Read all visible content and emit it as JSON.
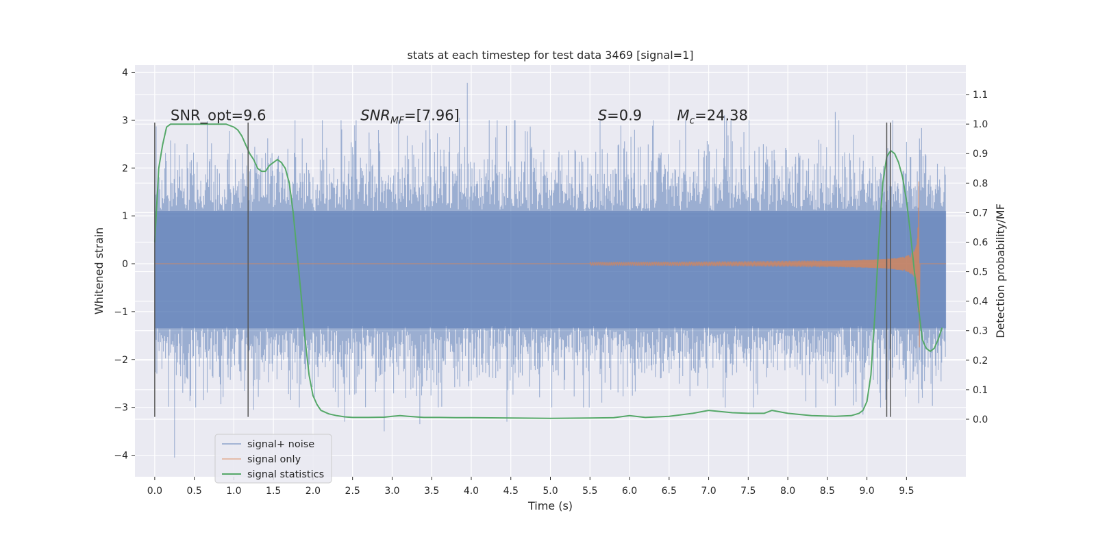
{
  "chart_data": {
    "type": "line",
    "title": "stats at each timestep for test data 3469 [signal=1]",
    "xlabel": "Time (s)",
    "ylabel_left": "Whitened strain",
    "ylabel_right": "Detection probability/MF",
    "xlim": [
      -0.25,
      10.25
    ],
    "ylim_left": [
      -4.45,
      4.15
    ],
    "ylim_right": [
      -0.195,
      1.2
    ],
    "x_ticks": [
      "0.0",
      "0.5",
      "1.0",
      "1.5",
      "2.0",
      "2.5",
      "3.0",
      "3.5",
      "4.0",
      "4.5",
      "5.0",
      "5.5",
      "6.0",
      "6.5",
      "7.0",
      "7.5",
      "8.0",
      "8.5",
      "9.0",
      "9.5"
    ],
    "y_ticks_left": [
      "−4",
      "−3",
      "−2",
      "−1",
      "0",
      "1",
      "2",
      "3",
      "4"
    ],
    "y_ticks_right": [
      "0.0",
      "0.1",
      "0.2",
      "0.3",
      "0.4",
      "0.5",
      "0.6",
      "0.7",
      "0.8",
      "0.9",
      "1.0",
      "1.1"
    ],
    "grid": true,
    "legend_position": "lower-left",
    "colors": {
      "noise": "#4c72b0",
      "signal": "#dd8452",
      "stats": "#55a868",
      "vlines": "#555555",
      "background": "#eaeaf2"
    },
    "series": [
      {
        "name": "signal+ noise",
        "kind": "strain_noise",
        "duration_s": 10.0,
        "band": [
          -1.35,
          1.1
        ],
        "envelope_upper_typical": 2.0,
        "envelope_lower_typical": -2.0,
        "spikes": [
          {
            "x": 0.25,
            "y": -4.05
          },
          {
            "x": 3.95,
            "y": 3.78
          },
          {
            "x": 2.9,
            "y": -3.5
          },
          {
            "x": 3.35,
            "y": -3.35
          },
          {
            "x": 4.45,
            "y": -3.3
          },
          {
            "x": 2.4,
            "y": -3.3
          },
          {
            "x": 8.95,
            "y": -3.15
          },
          {
            "x": 9.7,
            "y": -2.8
          },
          {
            "x": 8.6,
            "y": 3.17
          },
          {
            "x": 3.85,
            "y": 3.05
          },
          {
            "x": 1.25,
            "y": -3.05
          },
          {
            "x": 7.2,
            "y": 3.1
          },
          {
            "x": 5.65,
            "y": -2.9
          },
          {
            "x": 6.3,
            "y": 3.0
          }
        ]
      },
      {
        "name": "signal only",
        "kind": "chirp",
        "chirp_start_s": 5.5,
        "merger_s": 9.65,
        "peak_amplitude": 1.72,
        "end_s": 10.0
      },
      {
        "name": "signal statistics",
        "axis": "right",
        "x": [
          0.0,
          0.05,
          0.1,
          0.15,
          0.2,
          0.3,
          0.5,
          0.7,
          0.9,
          1.0,
          1.05,
          1.1,
          1.15,
          1.2,
          1.25,
          1.3,
          1.35,
          1.4,
          1.45,
          1.5,
          1.55,
          1.6,
          1.65,
          1.7,
          1.75,
          1.8,
          1.85,
          1.9,
          1.95,
          2.0,
          2.05,
          2.1,
          2.2,
          2.3,
          2.4,
          2.5,
          2.7,
          2.9,
          3.0,
          3.1,
          3.2,
          3.4,
          3.6,
          3.8,
          4.0,
          4.5,
          5.0,
          5.5,
          5.8,
          6.0,
          6.2,
          6.5,
          6.8,
          7.0,
          7.3,
          7.5,
          7.7,
          7.8,
          8.0,
          8.3,
          8.6,
          8.8,
          8.9,
          8.95,
          9.0,
          9.05,
          9.1,
          9.15,
          9.2,
          9.25,
          9.3,
          9.35,
          9.4,
          9.45,
          9.5,
          9.55,
          9.6,
          9.65,
          9.7,
          9.75,
          9.8,
          9.85,
          9.9,
          9.95
        ],
        "values": [
          0.6,
          0.85,
          0.93,
          0.99,
          1.0,
          1.0,
          1.0,
          1.0,
          1.0,
          0.99,
          0.98,
          0.96,
          0.93,
          0.9,
          0.88,
          0.85,
          0.84,
          0.84,
          0.86,
          0.87,
          0.88,
          0.87,
          0.85,
          0.8,
          0.7,
          0.56,
          0.42,
          0.27,
          0.15,
          0.08,
          0.05,
          0.03,
          0.018,
          0.012,
          0.008,
          0.006,
          0.006,
          0.007,
          0.01,
          0.012,
          0.01,
          0.006,
          0.006,
          0.005,
          0.005,
          0.004,
          0.003,
          0.004,
          0.005,
          0.012,
          0.006,
          0.01,
          0.02,
          0.03,
          0.022,
          0.02,
          0.02,
          0.03,
          0.02,
          0.012,
          0.01,
          0.012,
          0.02,
          0.03,
          0.06,
          0.15,
          0.35,
          0.6,
          0.8,
          0.89,
          0.91,
          0.9,
          0.87,
          0.82,
          0.74,
          0.63,
          0.5,
          0.38,
          0.27,
          0.24,
          0.23,
          0.24,
          0.27,
          0.31
        ]
      }
    ],
    "vertical_lines": [
      0.0,
      1.18,
      9.25,
      9.3
    ],
    "vertical_line_range": [
      -3.2,
      2.95
    ],
    "annotations": [
      {
        "key": "snr_opt",
        "text": "SNR_opt=9.6",
        "x": 0.2,
        "y": 3.0
      },
      {
        "key": "snr_mf",
        "text_prefix": "SNR",
        "text_sub": "MF",
        "text_suffix": "=[7.96]",
        "x": 2.6,
        "y": 3.0
      },
      {
        "key": "s",
        "text_italic": "S",
        "text_suffix": "=0.9",
        "x": 5.6,
        "y": 3.0
      },
      {
        "key": "mc",
        "text_italic": "M",
        "text_sub": "c",
        "text_suffix": "=24.38",
        "x": 6.6,
        "y": 3.0
      }
    ]
  }
}
